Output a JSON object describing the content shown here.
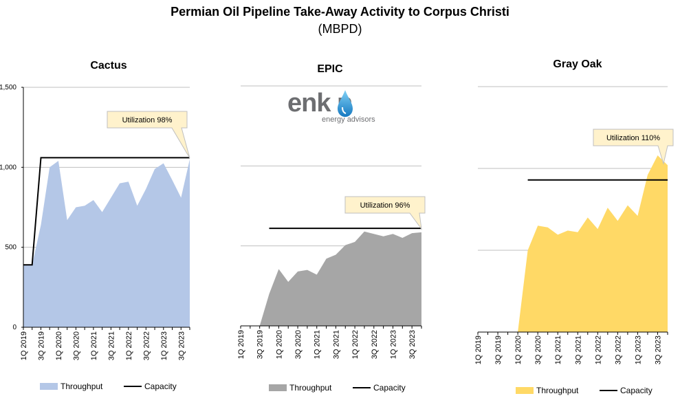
{
  "title": "Permian Oil Pipeline Take-Away Activity to Corpus Christi",
  "subtitle": "(MBPD)",
  "logo": {
    "word": "enk n",
    "tagline": "energy advisors"
  },
  "colors": {
    "cactus_fill": "#b4c7e7",
    "epic_fill": "#a6a6a6",
    "grayoak_fill": "#ffd966",
    "capacity_line": "#000000",
    "grid": "#bfbfbf",
    "callout_fill": "#fff2cc",
    "callout_border": "#bfbfbf"
  },
  "chart_data": [
    {
      "type": "area",
      "title": "Cactus",
      "y_ticks": [
        "1,500",
        "1,000",
        "500",
        "0"
      ],
      "ylim": [
        0,
        1500
      ],
      "x_tick_labels": [
        "1Q 2019",
        "3Q 2019",
        "1Q 2020",
        "3Q 2020",
        "1Q 2021",
        "3Q 2021",
        "1Q 2022",
        "3Q 2022",
        "1Q 2023",
        "3Q 2023"
      ],
      "series": [
        {
          "name": "Throughput",
          "kind": "area",
          "values": [
            390,
            390,
            640,
            1000,
            1040,
            670,
            750,
            760,
            795,
            720,
            810,
            900,
            910,
            760,
            865,
            990,
            1025,
            920,
            810,
            1050
          ]
        },
        {
          "name": "Capacity",
          "kind": "line",
          "values": [
            390,
            390,
            1060,
            1060,
            1060,
            1060,
            1060,
            1060,
            1060,
            1060,
            1060,
            1060,
            1060,
            1060,
            1060,
            1060,
            1060,
            1060,
            1060,
            1060
          ]
        }
      ],
      "annotation": "Utilization 98%",
      "legend": [
        "Throughput",
        "Capacity"
      ]
    },
    {
      "type": "area",
      "title": "EPIC",
      "y_ticks": [],
      "ylim": [
        0,
        1500
      ],
      "x_tick_labels": [
        "1Q 2019",
        "3Q 2019",
        "1Q 2020",
        "3Q 2020",
        "1Q 2021",
        "3Q 2021",
        "1Q 2022",
        "3Q 2022",
        "1Q 2023",
        "3Q 2023"
      ],
      "series": [
        {
          "name": "Throughput",
          "kind": "area",
          "values": [
            0,
            0,
            0,
            200,
            355,
            275,
            340,
            350,
            320,
            420,
            445,
            505,
            525,
            590,
            575,
            560,
            575,
            550,
            580,
            585
          ]
        },
        {
          "name": "Capacity",
          "kind": "line",
          "values": [
            null,
            null,
            null,
            610,
            610,
            610,
            610,
            610,
            610,
            610,
            610,
            610,
            610,
            610,
            610,
            610,
            610,
            610,
            610,
            610
          ]
        }
      ],
      "annotation": "Utilization 96%",
      "legend": [
        "Throughput",
        "Capacity"
      ]
    },
    {
      "type": "area",
      "title": "Gray Oak",
      "y_ticks": [],
      "ylim": [
        0,
        1500
      ],
      "x_tick_labels": [
        "1Q 2019",
        "3Q 2019",
        "1Q 2020",
        "3Q 2020",
        "1Q 2021",
        "3Q 2021",
        "1Q 2022",
        "3Q 2022",
        "1Q 2023",
        "3Q 2023"
      ],
      "series": [
        {
          "name": "Throughput",
          "kind": "area",
          "values": [
            0,
            0,
            0,
            0,
            0,
            500,
            650,
            640,
            595,
            620,
            610,
            700,
            630,
            760,
            680,
            775,
            710,
            960,
            1080,
            1020
          ]
        },
        {
          "name": "Capacity",
          "kind": "line",
          "values": [
            null,
            null,
            null,
            null,
            null,
            930,
            930,
            930,
            930,
            930,
            930,
            930,
            930,
            930,
            930,
            930,
            930,
            930,
            930,
            930
          ]
        }
      ],
      "annotation": "Utilization 110%",
      "legend": [
        "Throughput",
        "Capacity"
      ]
    }
  ]
}
